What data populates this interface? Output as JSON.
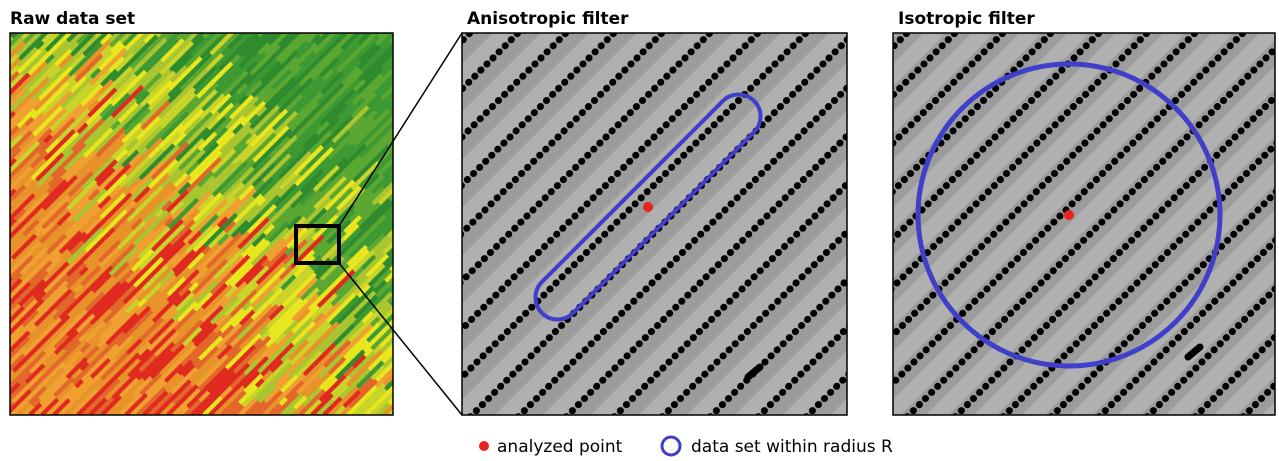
{
  "panels": [
    {
      "title": "Raw data set"
    },
    {
      "title": "Anisotropic filter"
    },
    {
      "title": "Isotropic filter"
    }
  ],
  "legend": [
    {
      "label": "analyzed point"
    },
    {
      "label": "data set within radius R"
    }
  ]
}
